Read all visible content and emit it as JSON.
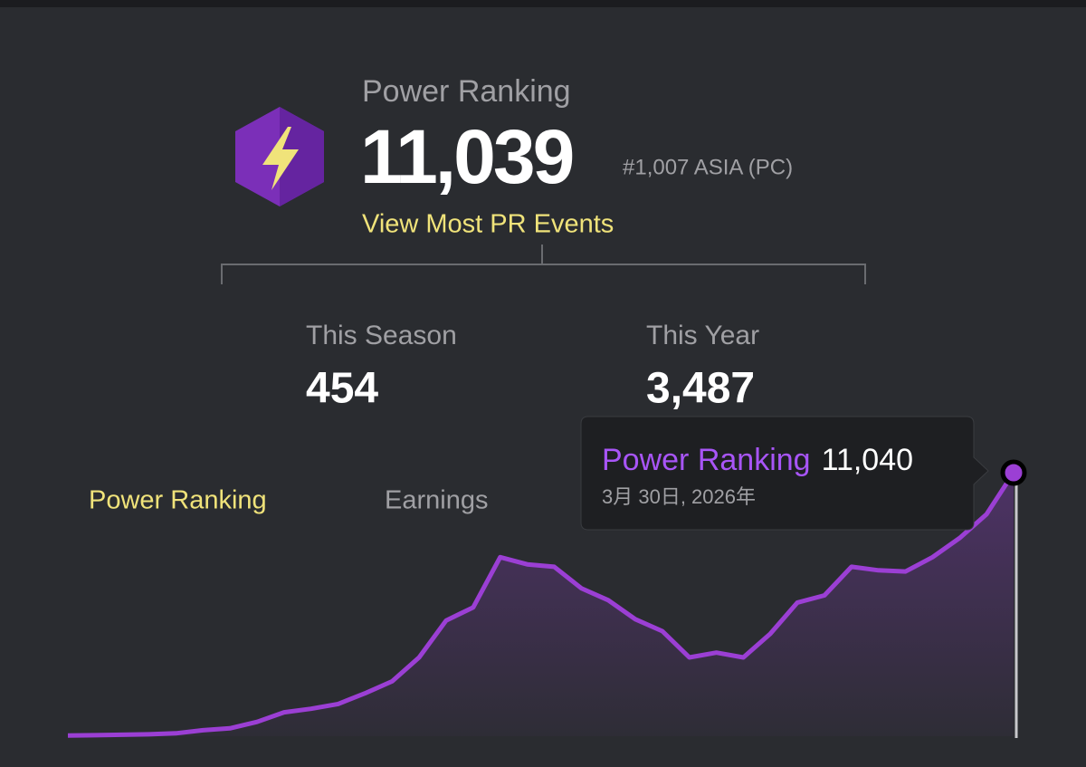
{
  "header": {
    "title": "Power Ranking",
    "value": "11,039",
    "rank": "#1,007 ASIA (PC)",
    "link": "View Most PR Events"
  },
  "stats": [
    {
      "label": "This Season",
      "value": "454"
    },
    {
      "label": "This Year",
      "value": "3,487"
    }
  ],
  "tabs": [
    "Power Ranking",
    "Earnings"
  ],
  "chart_data": {
    "type": "line",
    "color": "#9b3fd4",
    "values": [
      30,
      40,
      60,
      80,
      120,
      250,
      330,
      600,
      1000,
      1150,
      1350,
      1800,
      2300,
      3300,
      4850,
      5400,
      7500,
      7200,
      7100,
      6200,
      5700,
      4900,
      4400,
      3300,
      3500,
      3300,
      4300,
      5600,
      5900,
      7100,
      6950,
      6900,
      7500,
      8300,
      9300,
      11040
    ],
    "tooltip": {
      "series": "Power Ranking",
      "value": "11,040",
      "date": "3月 30日, 2026年"
    }
  }
}
